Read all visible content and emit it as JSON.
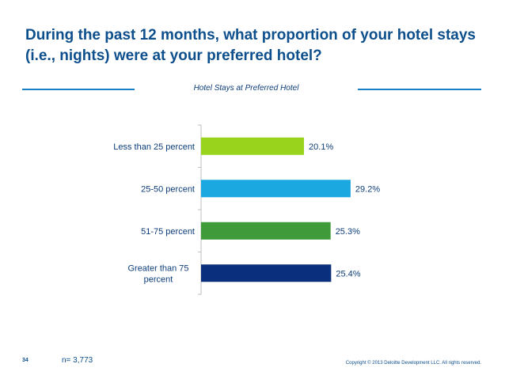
{
  "header": {
    "title_line1": "During the past 12 months, what proportion of your hotel stays",
    "title_line2": "(i.e., nights) were at your preferred hotel?"
  },
  "footer": {
    "page_number": "34",
    "sample_size": "n= 3,773",
    "copyright": "Copyright © 2013 Deloitte Development LLC. All rights reserved."
  },
  "chart_data": {
    "type": "bar",
    "orientation": "horizontal",
    "title": "Hotel Stays at Preferred Hotel",
    "categories": [
      "Less than 25 percent",
      "25-50 percent",
      "51-75 percent",
      "Greater than 75 percent"
    ],
    "category_lines": [
      [
        "Less than 25 percent"
      ],
      [
        "25-50 percent"
      ],
      [
        "51-75 percent"
      ],
      [
        "Greater than 75",
        "percent"
      ]
    ],
    "values": [
      20.1,
      29.2,
      25.3,
      25.4
    ],
    "value_labels": [
      "20.1%",
      "29.2%",
      "25.3%",
      "25.4%"
    ],
    "colors": [
      "#99d31b",
      "#1ba8e0",
      "#3f9a3a",
      "#0a2f7c"
    ],
    "xlim": [
      0,
      40
    ],
    "xlabel": "",
    "ylabel": "",
    "grid": false,
    "legend": "none"
  }
}
